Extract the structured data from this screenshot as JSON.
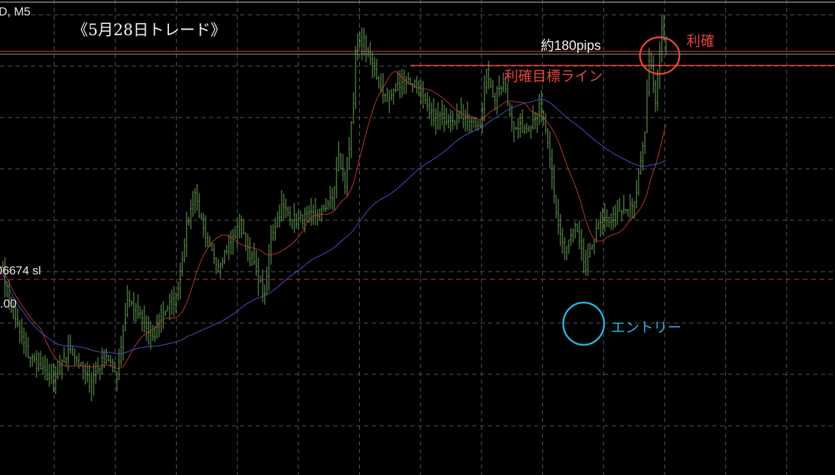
{
  "header": {
    "symbol_timeframe": "D, M5"
  },
  "annotations": {
    "title": "《5月28日トレード》",
    "pips_label": "約180pips",
    "take_profit_label": "利確",
    "take_profit_target_line_label": "利確目標ライン",
    "entry_label": "エントリー",
    "sl_label": "06674 sl",
    "lot_label": ".00"
  },
  "colors": {
    "background": "#000000",
    "grid": "#5a5a5a",
    "bars": "#6fae5c",
    "ma_short": "#c0392b",
    "ma_long": "#4a56c8",
    "take_profit": "#e5463c",
    "entry": "#27b6e0",
    "sl_line": "#c0392b"
  },
  "chart_data": {
    "type": "ohlc",
    "timeframe": "M5",
    "grid": true,
    "note_values": "approximate price path (estimated, y-axis not visible)",
    "path_bar_index": [
      0,
      5,
      13,
      25,
      33,
      42,
      50,
      55,
      60,
      67,
      72,
      77,
      83,
      88,
      92,
      97,
      103,
      113,
      120,
      125,
      128,
      133,
      140,
      150,
      157,
      160,
      163,
      167,
      168,
      172,
      177,
      183,
      190,
      197,
      203,
      210,
      220,
      227,
      230,
      233,
      238,
      243,
      250,
      255,
      258,
      263,
      267,
      272,
      277,
      282,
      287,
      293,
      300,
      305,
      307,
      310,
      312,
      313,
      315
    ],
    "path_price": [
      1.0678,
      1.0648,
      1.0622,
      1.0605,
      1.0626,
      1.0605,
      1.0622,
      1.0609,
      1.0656,
      1.0643,
      1.063,
      1.0648,
      1.0656,
      1.0699,
      1.072,
      1.069,
      1.0677,
      1.0699,
      1.0677,
      1.0656,
      1.0694,
      1.0711,
      1.0703,
      1.0707,
      1.0716,
      1.0741,
      1.0724,
      1.0771,
      1.0805,
      1.0813,
      1.0792,
      1.0775,
      1.0788,
      1.0786,
      1.0767,
      1.0765,
      1.0767,
      1.0758,
      1.0797,
      1.0775,
      1.0788,
      1.0758,
      1.076,
      1.0771,
      1.0758,
      1.0707,
      1.0684,
      1.0699,
      1.0673,
      1.0699,
      1.0703,
      1.0707,
      1.0712,
      1.0758,
      1.0801,
      1.0775,
      1.0805,
      1.0822,
      1.0805
    ],
    "horizontal_lines": [
      {
        "label": "利確目標ライン",
        "price": 1.0805
      },
      {
        "label": "06674 sl",
        "price": 1.06674
      }
    ],
    "moving_averages": [
      {
        "color": "#c0392b",
        "kind": "short"
      },
      {
        "color": "#4a56c8",
        "kind": "long"
      }
    ],
    "markers": [
      {
        "label": "エントリー",
        "bar_index": 276
      },
      {
        "label": "利確",
        "bar_index": 312
      }
    ]
  }
}
